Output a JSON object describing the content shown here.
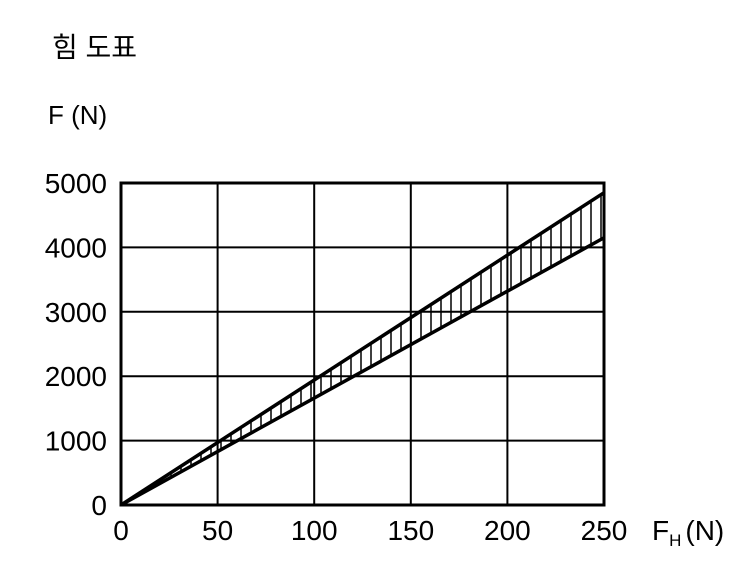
{
  "chart_data": {
    "type": "area",
    "title": "힘 도표",
    "ylabel": "F (N)",
    "xlabel": {
      "main": "F",
      "sub": "H",
      "unit": "(N)"
    },
    "xlim": [
      0,
      250
    ],
    "ylim": [
      0,
      5000
    ],
    "xticks": [
      0,
      50,
      100,
      150,
      200,
      250
    ],
    "yticks": [
      0,
      1000,
      2000,
      3000,
      4000,
      5000
    ],
    "grid": true,
    "series": [
      {
        "x": [
          0,
          250
        ],
        "y": [
          0,
          4850
        ]
      },
      {
        "x": [
          0,
          250
        ],
        "y": [
          0,
          4150
        ]
      }
    ],
    "band": {
      "hatch": "vertical",
      "between_series": [
        0,
        1
      ]
    }
  },
  "style": {
    "line_color": "#000000",
    "background": "#ffffff"
  }
}
